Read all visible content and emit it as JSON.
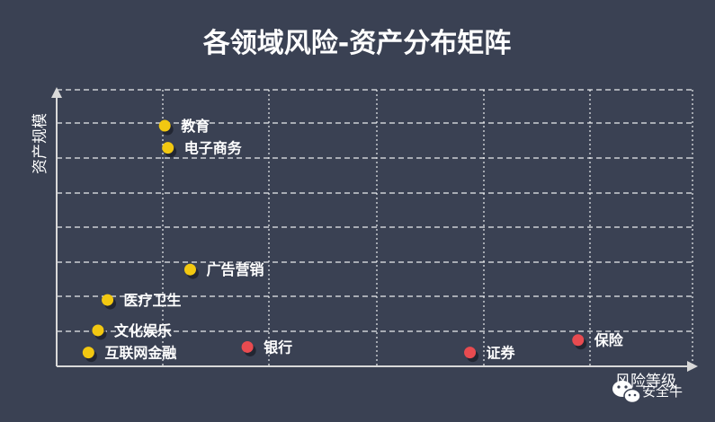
{
  "chart_data": {
    "type": "scatter",
    "title": "各领域风险-资产分布矩阵",
    "xlabel": "风险等级",
    "ylabel": "资产规模",
    "xlim": [
      0,
      10
    ],
    "ylim": [
      0,
      10
    ],
    "grid": true,
    "legend": "none",
    "colors": {
      "low_risk": "#f2c811",
      "high_risk": "#e84b50",
      "background": "#3a4153",
      "grid": "#ffffff"
    },
    "points": [
      {
        "label": "教育",
        "x": 1.7,
        "y": 8.7,
        "group": "low_risk"
      },
      {
        "label": "电子商务",
        "x": 1.75,
        "y": 7.9,
        "group": "low_risk"
      },
      {
        "label": "广告营销",
        "x": 2.1,
        "y": 3.5,
        "group": "low_risk"
      },
      {
        "label": "医疗卫生",
        "x": 0.8,
        "y": 2.4,
        "group": "low_risk"
      },
      {
        "label": "文化娱乐",
        "x": 0.65,
        "y": 1.3,
        "group": "low_risk"
      },
      {
        "label": "互联网金融",
        "x": 0.5,
        "y": 0.5,
        "group": "low_risk"
      },
      {
        "label": "银行",
        "x": 3.0,
        "y": 0.7,
        "group": "high_risk"
      },
      {
        "label": "证券",
        "x": 6.5,
        "y": 0.5,
        "group": "high_risk"
      },
      {
        "label": "保险",
        "x": 8.2,
        "y": 0.95,
        "group": "high_risk"
      }
    ]
  },
  "watermark": {
    "text": "安全牛",
    "icon": "wechat-icon"
  }
}
